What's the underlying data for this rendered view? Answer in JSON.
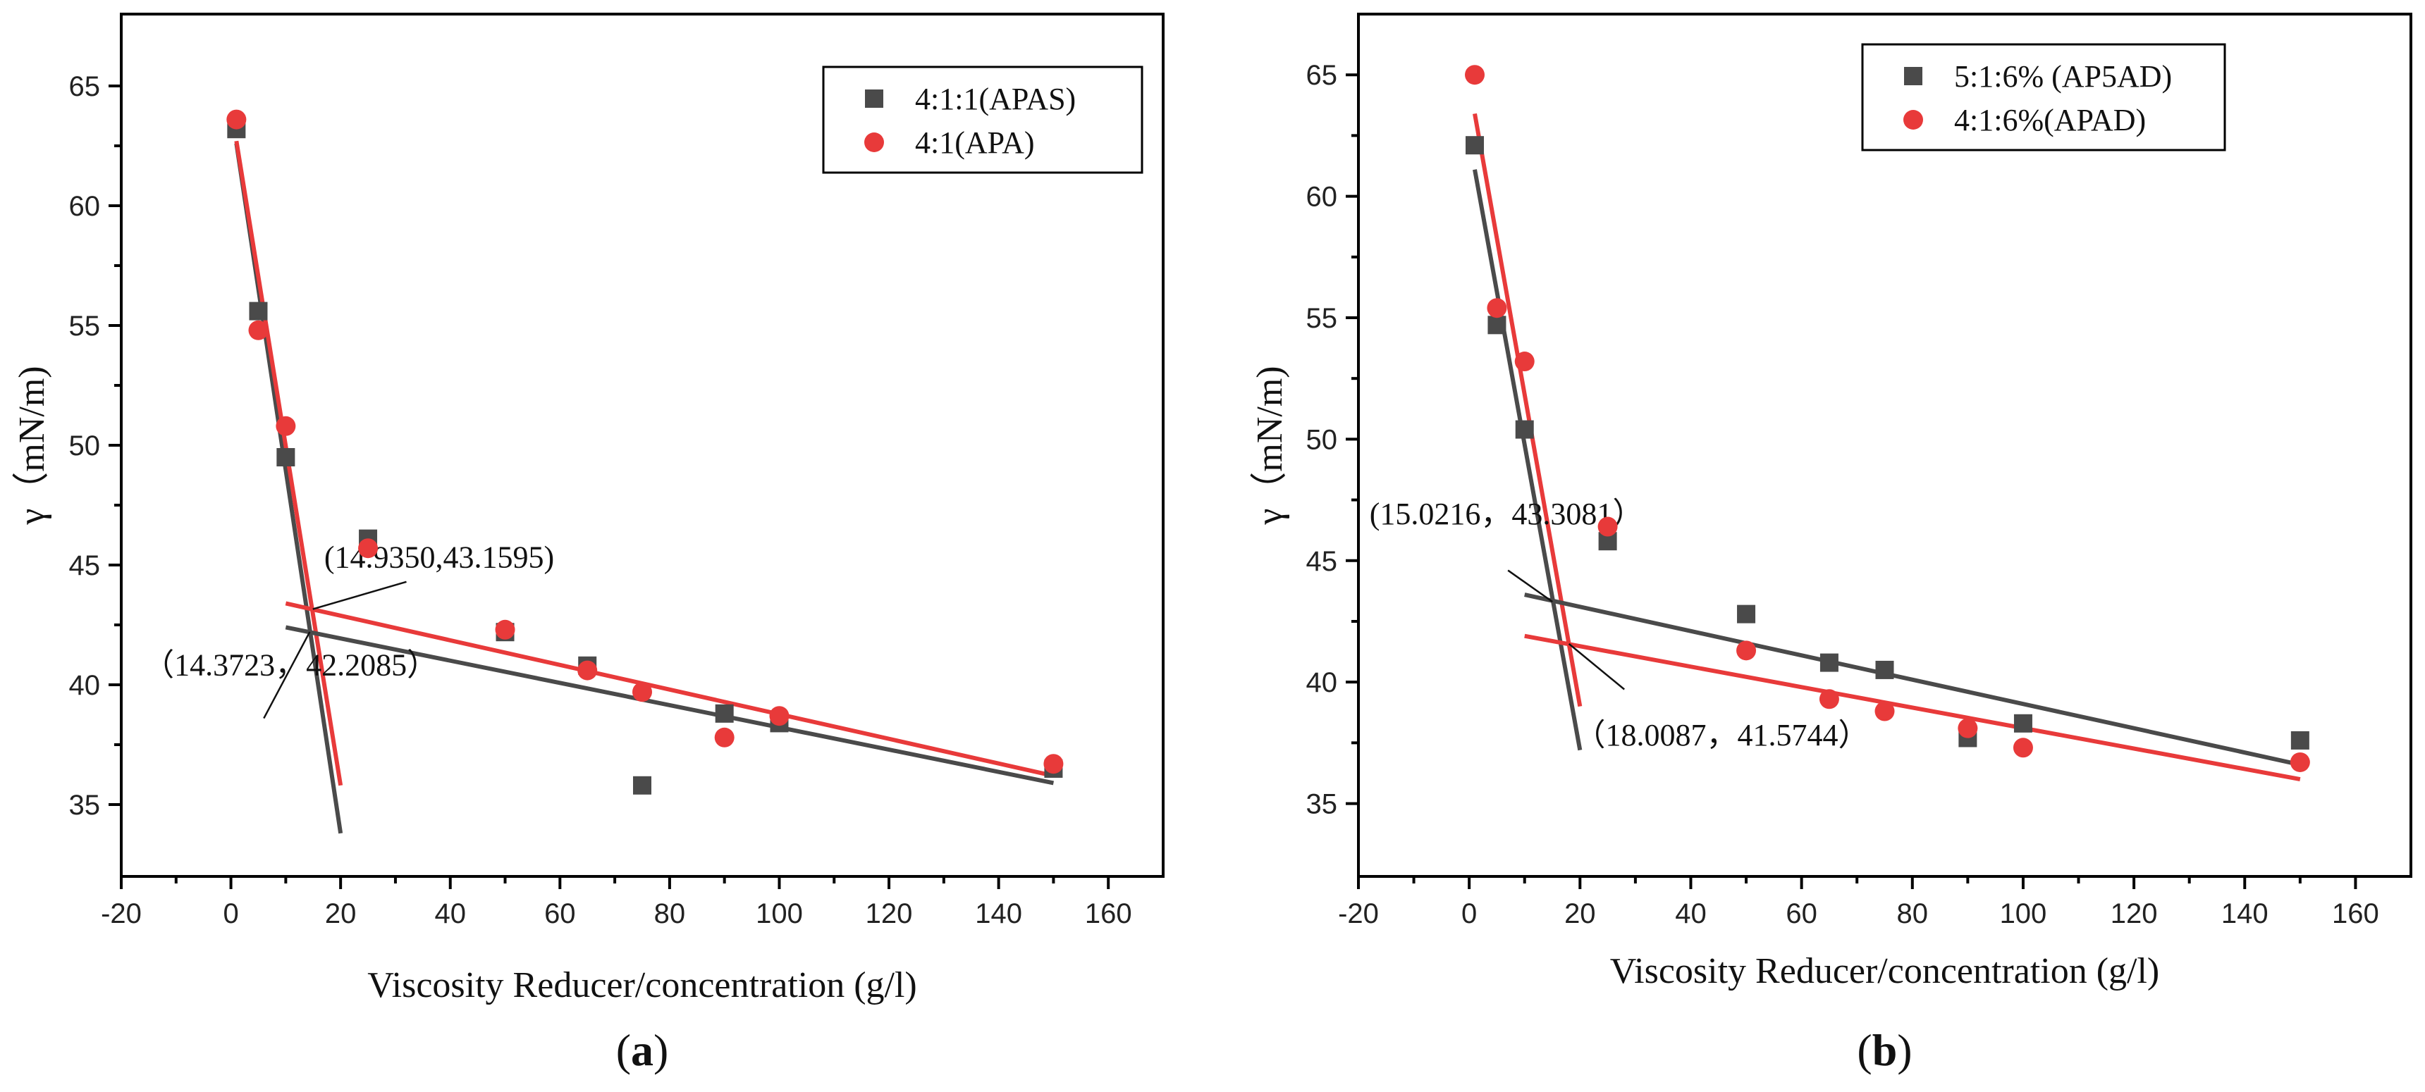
{
  "chart_data": [
    {
      "type": "scatter",
      "panel_label": "a",
      "xlabel": "Viscosity Reducer/concentration (g/l)",
      "ylabel": "γ（mN/m)",
      "xlim": [
        -20,
        170
      ],
      "ylim": [
        32,
        68
      ],
      "xticks": [
        -20,
        0,
        20,
        40,
        60,
        80,
        100,
        120,
        140,
        160
      ],
      "yticks": [
        35,
        40,
        45,
        50,
        55,
        60,
        65
      ],
      "legend_position": "top-right",
      "series": [
        {
          "name": "4:1:1(APAS)",
          "marker": "square",
          "color": "#4a4a4a",
          "x": [
            1,
            5,
            10,
            25,
            50,
            65,
            75,
            90,
            100,
            150
          ],
          "y": [
            63.2,
            55.6,
            49.5,
            46.1,
            42.2,
            40.8,
            35.8,
            38.8,
            38.4,
            36.5
          ]
        },
        {
          "name": "4:1(APA)",
          "marker": "circle",
          "color": "#e83a3a",
          "x": [
            1,
            5,
            10,
            25,
            50,
            65,
            75,
            90,
            100,
            150
          ],
          "y": [
            63.6,
            54.8,
            50.8,
            45.7,
            42.3,
            40.6,
            39.7,
            37.8,
            38.7,
            36.7
          ]
        }
      ],
      "fit_lines": [
        {
          "color": "#4a4a4a",
          "x": [
            1,
            20
          ],
          "y": [
            62.6,
            33.8
          ]
        },
        {
          "color": "#e83a3a",
          "x": [
            1,
            20
          ],
          "y": [
            62.7,
            35.8
          ]
        },
        {
          "color": "#4a4a4a",
          "x": [
            10,
            150
          ],
          "y": [
            42.4,
            35.9
          ]
        },
        {
          "color": "#e83a3a",
          "x": [
            10,
            150
          ],
          "y": [
            43.4,
            36.2
          ]
        }
      ],
      "annotations": [
        {
          "text": "(14.9350,43.1595)",
          "x": 14.935,
          "y": 43.1595,
          "label_at": [
            17,
            44.9
          ],
          "leader_to": [
            32,
            44.3
          ]
        },
        {
          "text": "（14.3723，42.2085）",
          "x": 14.3723,
          "y": 42.2085,
          "label_at": [
            -16,
            40.4
          ],
          "leader_to": [
            6,
            38.6
          ]
        }
      ]
    },
    {
      "type": "scatter",
      "panel_label": "b",
      "xlabel": "Viscosity Reducer/concentration (g/l)",
      "ylabel": "γ（mN/m)",
      "xlim": [
        -20,
        170
      ],
      "ylim": [
        32,
        67.5
      ],
      "xticks": [
        -20,
        0,
        20,
        40,
        60,
        80,
        100,
        120,
        140,
        160
      ],
      "yticks": [
        35,
        40,
        45,
        50,
        55,
        60,
        65
      ],
      "legend_position": "top-right",
      "series": [
        {
          "name": "5:1:6% (AP5AD)",
          "marker": "square",
          "color": "#4a4a4a",
          "x": [
            1,
            5,
            10,
            25,
            50,
            65,
            75,
            90,
            100,
            150
          ],
          "y": [
            62.1,
            54.7,
            50.4,
            45.8,
            42.8,
            40.8,
            40.5,
            37.7,
            38.3,
            37.6
          ]
        },
        {
          "name": "4:1:6%(APAD)",
          "marker": "circle",
          "color": "#e83a3a",
          "x": [
            1,
            5,
            10,
            25,
            50,
            65,
            75,
            90,
            100,
            150
          ],
          "y": [
            65.0,
            55.4,
            53.2,
            46.4,
            41.3,
            39.3,
            38.8,
            38.1,
            37.3,
            36.7
          ]
        }
      ],
      "fit_lines": [
        {
          "color": "#4a4a4a",
          "x": [
            1,
            20
          ],
          "y": [
            61.1,
            37.2
          ]
        },
        {
          "color": "#e83a3a",
          "x": [
            1,
            20
          ],
          "y": [
            63.4,
            39.0
          ]
        },
        {
          "color": "#4a4a4a",
          "x": [
            10,
            150
          ],
          "y": [
            43.6,
            36.6
          ]
        },
        {
          "color": "#e83a3a",
          "x": [
            10,
            150
          ],
          "y": [
            41.9,
            36.0
          ]
        }
      ],
      "annotations": [
        {
          "text": "(15.0216，43.3081）",
          "x": 15.0216,
          "y": 43.3081,
          "label_at": [
            -18,
            46.5
          ],
          "leader_to": [
            7,
            44.6
          ]
        },
        {
          "text": "（18.0087，41.5744）",
          "x": 18.0087,
          "y": 41.5744,
          "label_at": [
            19,
            37.4
          ],
          "leader_to": [
            28,
            39.7
          ]
        }
      ]
    }
  ]
}
